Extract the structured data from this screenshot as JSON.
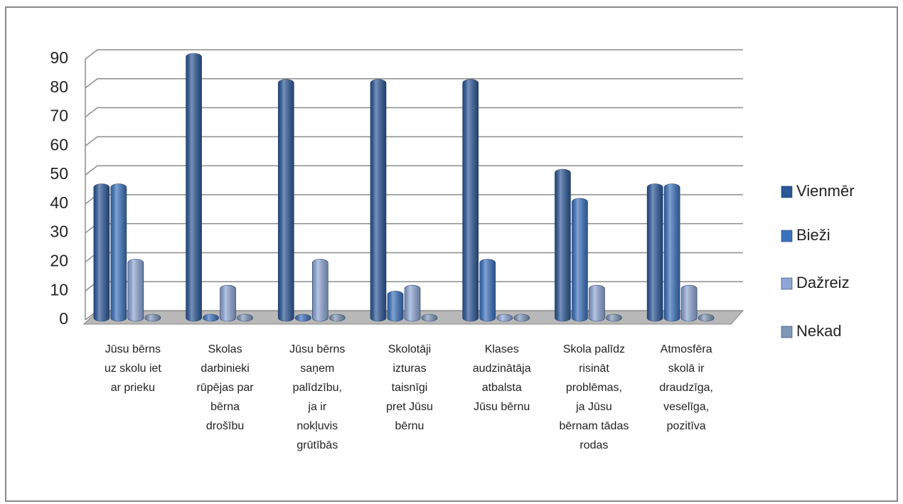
{
  "chart_data": {
    "type": "bar",
    "categories": [
      "Jūsu bērns uz skolu iet ar prieku",
      "Skolas darbinieki rūpējas par bērna drošību",
      "Jūsu bērns saņem palīdzību, ja ir nokļuvis grūtībās",
      "Skolotāji izturas taisnīgi pret Jūsu bērnu",
      "Klases audzinātāja atbalsta Jūsu bērnu",
      "Skola palīdz risināt problēmas, ja Jūsu bērnam tādas rodas",
      "Atmosfēra skolā ir draudzīga, veselīga, pozitīva"
    ],
    "series": [
      {
        "name": "Vienmēr",
        "color": "#2b5797",
        "values": [
          45,
          90,
          81,
          81,
          81,
          50,
          45
        ]
      },
      {
        "name": "Bieži",
        "color": "#3b72bd",
        "values": [
          45,
          0,
          0,
          8,
          19,
          40,
          45
        ]
      },
      {
        "name": "Dažreiz",
        "color": "#8ea6d6",
        "values": [
          19,
          10,
          19,
          10,
          0,
          10,
          10
        ]
      },
      {
        "name": "Nekad",
        "color": "#7f97b8",
        "values": [
          0,
          0,
          0,
          0,
          0,
          0,
          0
        ]
      }
    ],
    "ylim": [
      0,
      90
    ],
    "yticks": [
      0,
      10,
      20,
      30,
      40,
      50,
      60,
      70,
      80,
      90
    ],
    "grid": true,
    "legend": "right"
  }
}
